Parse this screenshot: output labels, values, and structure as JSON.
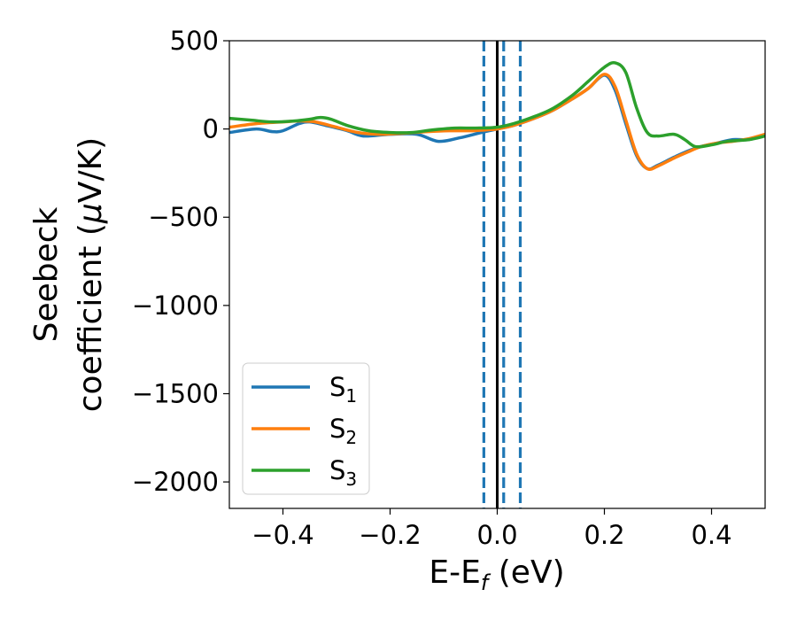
{
  "chart_data": {
    "type": "line",
    "xlabel": "E-E",
    "xlabel_sub": "f",
    "xlabel_unit": " (eV)",
    "ylabel_line1": "Seebeck",
    "ylabel_line2": "coefficient  (",
    "ylabel_mu": "μ",
    "ylabel_unit_end": "V/K)",
    "xlim": [
      -0.5,
      0.5
    ],
    "ylim": [
      -2150,
      500
    ],
    "xticks": [
      -0.4,
      -0.2,
      0.0,
      0.2,
      0.4
    ],
    "xtick_labels": [
      "−0.4",
      "−0.2",
      "0.0",
      "0.2",
      "0.4"
    ],
    "yticks": [
      500,
      0,
      -500,
      -1000,
      -1500,
      -2000
    ],
    "ytick_labels": [
      "500",
      "0",
      "−500",
      "−1000",
      "−1500",
      "−2000"
    ],
    "grid": false,
    "legend_position": "lower-left",
    "vlines": [
      {
        "x": 0.0,
        "style": "solid",
        "color": "#000000"
      },
      {
        "x": -0.025,
        "style": "dashed",
        "color": "#1f77b4"
      },
      {
        "x": 0.012,
        "style": "dashed",
        "color": "#1f77b4"
      },
      {
        "x": 0.043,
        "style": "dashed",
        "color": "#1f77b4"
      }
    ],
    "series": [
      {
        "name": "S",
        "name_sub": "1",
        "color": "#1f77b4",
        "points": [
          [
            -0.5,
            -20
          ],
          [
            -0.45,
            0
          ],
          [
            -0.42,
            -15
          ],
          [
            -0.4,
            -10
          ],
          [
            -0.37,
            30
          ],
          [
            -0.35,
            40
          ],
          [
            -0.32,
            20
          ],
          [
            -0.28,
            -10
          ],
          [
            -0.25,
            -40
          ],
          [
            -0.2,
            -30
          ],
          [
            -0.15,
            -30
          ],
          [
            -0.11,
            -70
          ],
          [
            -0.07,
            -50
          ],
          [
            -0.03,
            -20
          ],
          [
            0.0,
            0
          ],
          [
            0.03,
            20
          ],
          [
            0.06,
            50
          ],
          [
            0.1,
            100
          ],
          [
            0.14,
            170
          ],
          [
            0.17,
            230
          ],
          [
            0.2,
            305
          ],
          [
            0.22,
            220
          ],
          [
            0.24,
            30
          ],
          [
            0.26,
            -150
          ],
          [
            0.28,
            -225
          ],
          [
            0.3,
            -205
          ],
          [
            0.33,
            -160
          ],
          [
            0.36,
            -120
          ],
          [
            0.38,
            -100
          ],
          [
            0.41,
            -80
          ],
          [
            0.44,
            -60
          ],
          [
            0.47,
            -60
          ],
          [
            0.5,
            -30
          ]
        ]
      },
      {
        "name": "S",
        "name_sub": "2",
        "color": "#ff7f0e",
        "points": [
          [
            -0.5,
            10
          ],
          [
            -0.45,
            30
          ],
          [
            -0.4,
            40
          ],
          [
            -0.37,
            45
          ],
          [
            -0.34,
            40
          ],
          [
            -0.3,
            10
          ],
          [
            -0.26,
            -20
          ],
          [
            -0.22,
            -30
          ],
          [
            -0.18,
            -25
          ],
          [
            -0.13,
            -15
          ],
          [
            -0.09,
            -10
          ],
          [
            -0.05,
            -10
          ],
          [
            -0.02,
            -5
          ],
          [
            0.0,
            0
          ],
          [
            0.03,
            20
          ],
          [
            0.06,
            50
          ],
          [
            0.1,
            100
          ],
          [
            0.14,
            170
          ],
          [
            0.17,
            230
          ],
          [
            0.2,
            310
          ],
          [
            0.22,
            240
          ],
          [
            0.24,
            50
          ],
          [
            0.26,
            -140
          ],
          [
            0.28,
            -225
          ],
          [
            0.3,
            -210
          ],
          [
            0.33,
            -165
          ],
          [
            0.36,
            -125
          ],
          [
            0.38,
            -100
          ],
          [
            0.41,
            -80
          ],
          [
            0.44,
            -70
          ],
          [
            0.47,
            -55
          ],
          [
            0.5,
            -30
          ]
        ]
      },
      {
        "name": "S",
        "name_sub": "3",
        "color": "#2ca02c",
        "points": [
          [
            -0.5,
            60
          ],
          [
            -0.46,
            50
          ],
          [
            -0.42,
            40
          ],
          [
            -0.38,
            45
          ],
          [
            -0.35,
            55
          ],
          [
            -0.33,
            65
          ],
          [
            -0.31,
            55
          ],
          [
            -0.28,
            20
          ],
          [
            -0.24,
            -10
          ],
          [
            -0.2,
            -20
          ],
          [
            -0.16,
            -20
          ],
          [
            -0.12,
            -5
          ],
          [
            -0.08,
            5
          ],
          [
            -0.04,
            5
          ],
          [
            0.0,
            10
          ],
          [
            0.03,
            30
          ],
          [
            0.06,
            60
          ],
          [
            0.1,
            110
          ],
          [
            0.14,
            190
          ],
          [
            0.17,
            270
          ],
          [
            0.2,
            350
          ],
          [
            0.22,
            375
          ],
          [
            0.24,
            320
          ],
          [
            0.26,
            120
          ],
          [
            0.28,
            -20
          ],
          [
            0.3,
            -40
          ],
          [
            0.33,
            -30
          ],
          [
            0.35,
            -60
          ],
          [
            0.37,
            -100
          ],
          [
            0.4,
            -90
          ],
          [
            0.43,
            -70
          ],
          [
            0.47,
            -60
          ],
          [
            0.5,
            -40
          ]
        ]
      }
    ]
  }
}
